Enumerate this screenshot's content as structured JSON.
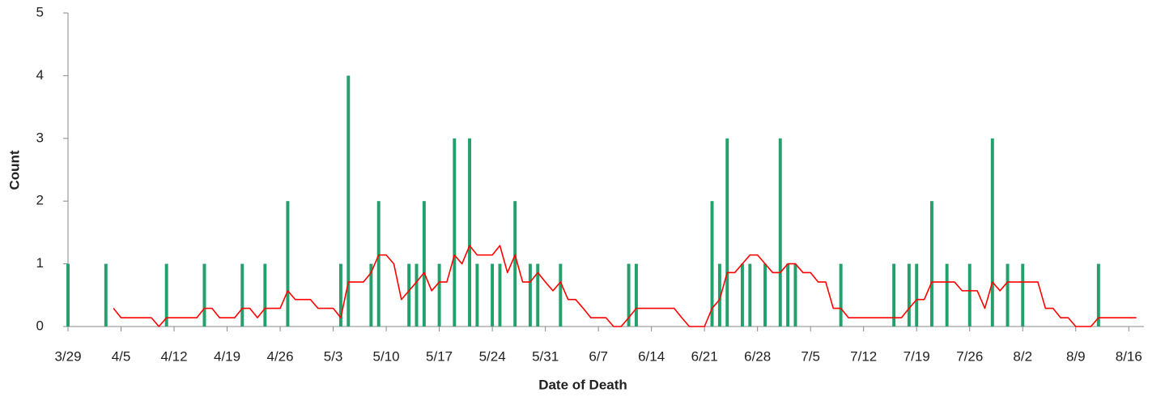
{
  "chart_data": {
    "type": "bar",
    "x_label": "Date of Death",
    "y_label": "Count",
    "xlim": [
      0,
      142
    ],
    "ylim": [
      0,
      5
    ],
    "yticks": [
      0,
      1,
      2,
      3,
      4,
      5
    ],
    "xticks": [
      {
        "value": 0,
        "label": "3/29"
      },
      {
        "value": 7,
        "label": "4/5"
      },
      {
        "value": 14,
        "label": "4/12"
      },
      {
        "value": 21,
        "label": "4/19"
      },
      {
        "value": 28,
        "label": "4/26"
      },
      {
        "value": 35,
        "label": "5/3"
      },
      {
        "value": 42,
        "label": "5/10"
      },
      {
        "value": 49,
        "label": "5/17"
      },
      {
        "value": 56,
        "label": "5/24"
      },
      {
        "value": 63,
        "label": "5/31"
      },
      {
        "value": 70,
        "label": "6/7"
      },
      {
        "value": 77,
        "label": "6/14"
      },
      {
        "value": 84,
        "label": "6/21"
      },
      {
        "value": 91,
        "label": "6/28"
      },
      {
        "value": 98,
        "label": "7/5"
      },
      {
        "value": 105,
        "label": "7/12"
      },
      {
        "value": 112,
        "label": "7/19"
      },
      {
        "value": 119,
        "label": "7/26"
      },
      {
        "value": 126,
        "label": "8/2"
      },
      {
        "value": 133,
        "label": "8/9"
      },
      {
        "value": 140,
        "label": "8/16"
      }
    ],
    "grid": false,
    "series": [
      {
        "type": "bar",
        "color": "#23a06b",
        "x": [
          0,
          5,
          13,
          18,
          23,
          26,
          29,
          36,
          37,
          40,
          41,
          45,
          46,
          47,
          49,
          51,
          53,
          54,
          56,
          57,
          59,
          61,
          62,
          65,
          74,
          75,
          85,
          86,
          87,
          89,
          90,
          92,
          94,
          95,
          96,
          102,
          109,
          111,
          112,
          114,
          116,
          119,
          122,
          124,
          126,
          136
        ],
        "values": [
          1,
          1,
          1,
          1,
          1,
          1,
          2,
          1,
          4,
          1,
          2,
          1,
          1,
          2,
          1,
          3,
          3,
          1,
          1,
          1,
          2,
          1,
          1,
          1,
          1,
          1,
          2,
          1,
          3,
          1,
          1,
          1,
          3,
          1,
          1,
          1,
          1,
          1,
          1,
          2,
          1,
          1,
          3,
          1,
          1,
          1
        ]
      },
      {
        "type": "line",
        "color": "#ff0000",
        "x": [
          6,
          7,
          8,
          9,
          10,
          11,
          12,
          13,
          14,
          15,
          16,
          17,
          18,
          19,
          20,
          21,
          22,
          23,
          24,
          25,
          26,
          27,
          28,
          29,
          30,
          31,
          32,
          33,
          34,
          35,
          36,
          37,
          38,
          39,
          40,
          41,
          42,
          43,
          44,
          45,
          46,
          47,
          48,
          49,
          50,
          51,
          52,
          53,
          54,
          55,
          56,
          57,
          58,
          59,
          60,
          61,
          62,
          63,
          64,
          65,
          66,
          67,
          68,
          69,
          70,
          71,
          72,
          73,
          74,
          75,
          76,
          77,
          78,
          79,
          80,
          81,
          82,
          83,
          84,
          85,
          86,
          87,
          88,
          89,
          90,
          91,
          92,
          93,
          94,
          95,
          96,
          97,
          98,
          99,
          100,
          101,
          102,
          103,
          104,
          105,
          106,
          107,
          108,
          109,
          110,
          111,
          112,
          113,
          114,
          115,
          116,
          117,
          118,
          119,
          120,
          121,
          122,
          123,
          124,
          125,
          126,
          127,
          128,
          129,
          130,
          131,
          132,
          133,
          134,
          135,
          136,
          137,
          138,
          139,
          140,
          141
        ],
        "values": [
          0.29,
          0.14,
          0.14,
          0.14,
          0.14,
          0.14,
          0,
          0.14,
          0.14,
          0.14,
          0.14,
          0.14,
          0.29,
          0.29,
          0.14,
          0.14,
          0.14,
          0.29,
          0.29,
          0.14,
          0.29,
          0.29,
          0.29,
          0.57,
          0.43,
          0.43,
          0.43,
          0.29,
          0.29,
          0.29,
          0.14,
          0.71,
          0.71,
          0.71,
          0.86,
          1.14,
          1.14,
          1,
          0.43,
          0.57,
          0.71,
          0.86,
          0.57,
          0.71,
          0.71,
          1.14,
          1,
          1.29,
          1.14,
          1.14,
          1.14,
          1.29,
          0.86,
          1.14,
          0.71,
          0.71,
          0.86,
          0.71,
          0.57,
          0.71,
          0.43,
          0.43,
          0.29,
          0.14,
          0.14,
          0.14,
          0,
          0,
          0.14,
          0.29,
          0.29,
          0.29,
          0.29,
          0.29,
          0.29,
          0.14,
          0,
          0,
          0,
          0.29,
          0.43,
          0.86,
          0.86,
          1,
          1.14,
          1.14,
          1,
          0.86,
          0.86,
          1,
          1,
          0.86,
          0.86,
          0.71,
          0.71,
          0.29,
          0.29,
          0.14,
          0.14,
          0.14,
          0.14,
          0.14,
          0.14,
          0.14,
          0.14,
          0.29,
          0.43,
          0.43,
          0.71,
          0.71,
          0.71,
          0.71,
          0.57,
          0.57,
          0.57,
          0.29,
          0.71,
          0.57,
          0.71,
          0.71,
          0.71,
          0.71,
          0.71,
          0.29,
          0.29,
          0.14,
          0.14,
          0,
          0,
          0,
          0.14,
          0.14,
          0.14,
          0.14,
          0.14,
          0.14
        ]
      }
    ]
  }
}
